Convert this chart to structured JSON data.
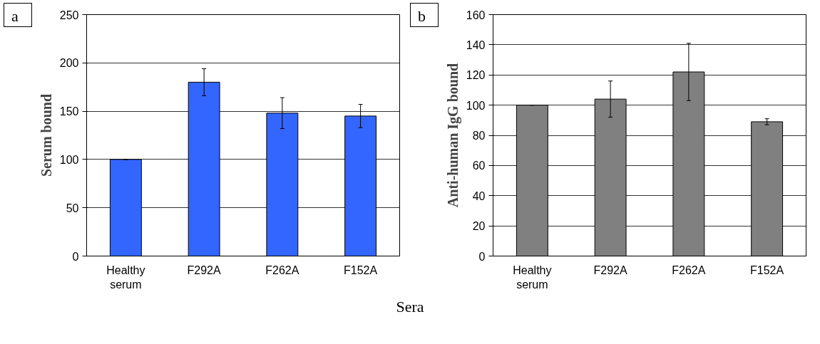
{
  "chart_data": [
    {
      "type": "bar",
      "annotations": [
        "a"
      ],
      "ylabel": "Serum bound",
      "xlabel": "Sera",
      "categories": [
        "Healthy\nserum",
        "F292A",
        "F262A",
        "F152A"
      ],
      "values": [
        100,
        180,
        148,
        145
      ],
      "errors": [
        0,
        14,
        16,
        12
      ],
      "color": "#3366ff",
      "ylim": [
        0,
        250
      ],
      "yticks": [
        0,
        50,
        100,
        150,
        200,
        250
      ],
      "grid": "y"
    },
    {
      "type": "bar",
      "annotations": [
        "b"
      ],
      "ylabel": "Anti-human IgG bound",
      "categories": [
        "Healthy\nserum",
        "F292A",
        "F262A",
        "F152A"
      ],
      "values": [
        100,
        104,
        122,
        89
      ],
      "errors": [
        0,
        12,
        19,
        2
      ],
      "color": "#808080",
      "ylim": [
        0,
        160
      ],
      "yticks": [
        0,
        20,
        40,
        60,
        80,
        100,
        120,
        140,
        160
      ],
      "grid": "y"
    }
  ]
}
